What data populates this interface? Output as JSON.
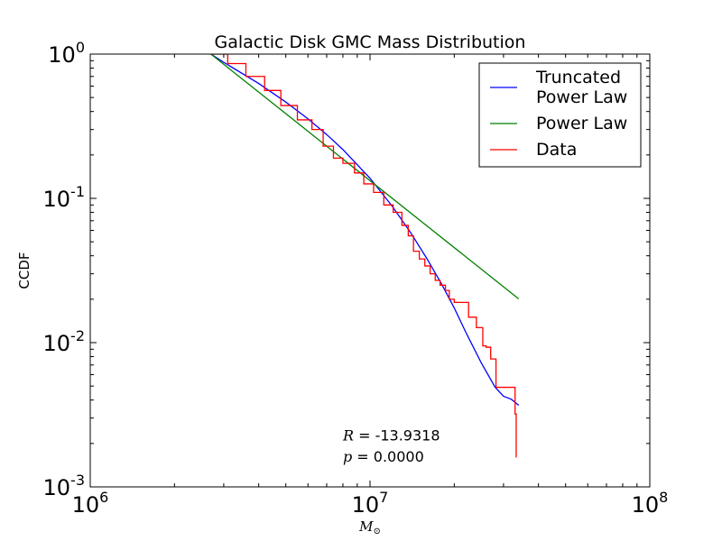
{
  "chart_data": {
    "type": "line",
    "title": "Galactic Disk GMC Mass Distribution",
    "xlabel": "M",
    "xlabel_subscript": "⊙",
    "ylabel": "CCDF",
    "xscale": "log",
    "yscale": "log",
    "xlim": [
      1000000,
      100000000
    ],
    "ylim": [
      0.001,
      1
    ],
    "x_ticks": [
      {
        "base": "10",
        "exp": "6",
        "value": 1000000
      },
      {
        "base": "10",
        "exp": "7",
        "value": 10000000
      },
      {
        "base": "10",
        "exp": "8",
        "value": 100000000
      }
    ],
    "y_ticks": [
      {
        "base": "10",
        "exp": "0",
        "value": 1
      },
      {
        "base": "10",
        "exp": "-1",
        "value": 0.1
      },
      {
        "base": "10",
        "exp": "-2",
        "value": 0.01
      },
      {
        "base": "10",
        "exp": "-3",
        "value": 0.001
      }
    ],
    "grid": false,
    "legend_position": "top-right",
    "series": [
      {
        "name": "Truncated\nPower Law",
        "color": "#0000ff",
        "style": "line",
        "x": [
          2700000,
          3000000,
          4000000,
          5000000,
          6000000,
          7000000,
          8000000,
          10000000,
          12000000,
          14000000,
          16000000,
          18000000,
          20000000,
          22000000,
          25000000,
          28000000,
          30000000,
          32000000,
          34000000
        ],
        "y": [
          1.0,
          0.877,
          0.626,
          0.465,
          0.356,
          0.277,
          0.218,
          0.138,
          0.0883,
          0.0575,
          0.038,
          0.0256,
          0.0174,
          0.0118,
          0.00722,
          0.00491,
          0.00425,
          0.00405,
          0.00368
        ]
      },
      {
        "name": "Power Law",
        "color": "#008000",
        "style": "line",
        "x": [
          2700000,
          34000000
        ],
        "y": [
          1.0,
          0.0201
        ]
      },
      {
        "name": "Data",
        "color": "#ff0000",
        "style": "step",
        "x": [
          2700000,
          3100000,
          3600000,
          4200000,
          4800000,
          5500000,
          6200000,
          6800000,
          7400000,
          8000000,
          8800000,
          9500000,
          10300000,
          11200000,
          12100000,
          13000000,
          13700000,
          14300000,
          15000000,
          15700000,
          16400000,
          17100000,
          17800000,
          18600000,
          19200000,
          20000000,
          21000000,
          22500000,
          24000000,
          25300000,
          26000000,
          27000000,
          28200000,
          29500000,
          32000000,
          33000000,
          33300000
        ],
        "y": [
          1.0,
          0.86,
          0.7,
          0.56,
          0.44,
          0.35,
          0.3,
          0.23,
          0.19,
          0.175,
          0.15,
          0.126,
          0.11,
          0.09,
          0.08,
          0.065,
          0.055,
          0.043,
          0.038,
          0.034,
          0.03,
          0.027,
          0.025,
          0.023,
          0.02,
          0.019,
          0.019,
          0.015,
          0.0127,
          0.0095,
          0.0093,
          0.0077,
          0.0049,
          0.0049,
          0.0049,
          0.0032,
          0.0016
        ]
      }
    ],
    "annotations": [
      {
        "symbol": "R",
        "text": " = -13.9318",
        "x": 8000000,
        "y": 0.0021
      },
      {
        "symbol": "p",
        "text": " = 0.0000",
        "x": 8000000,
        "y": 0.0015
      }
    ]
  }
}
